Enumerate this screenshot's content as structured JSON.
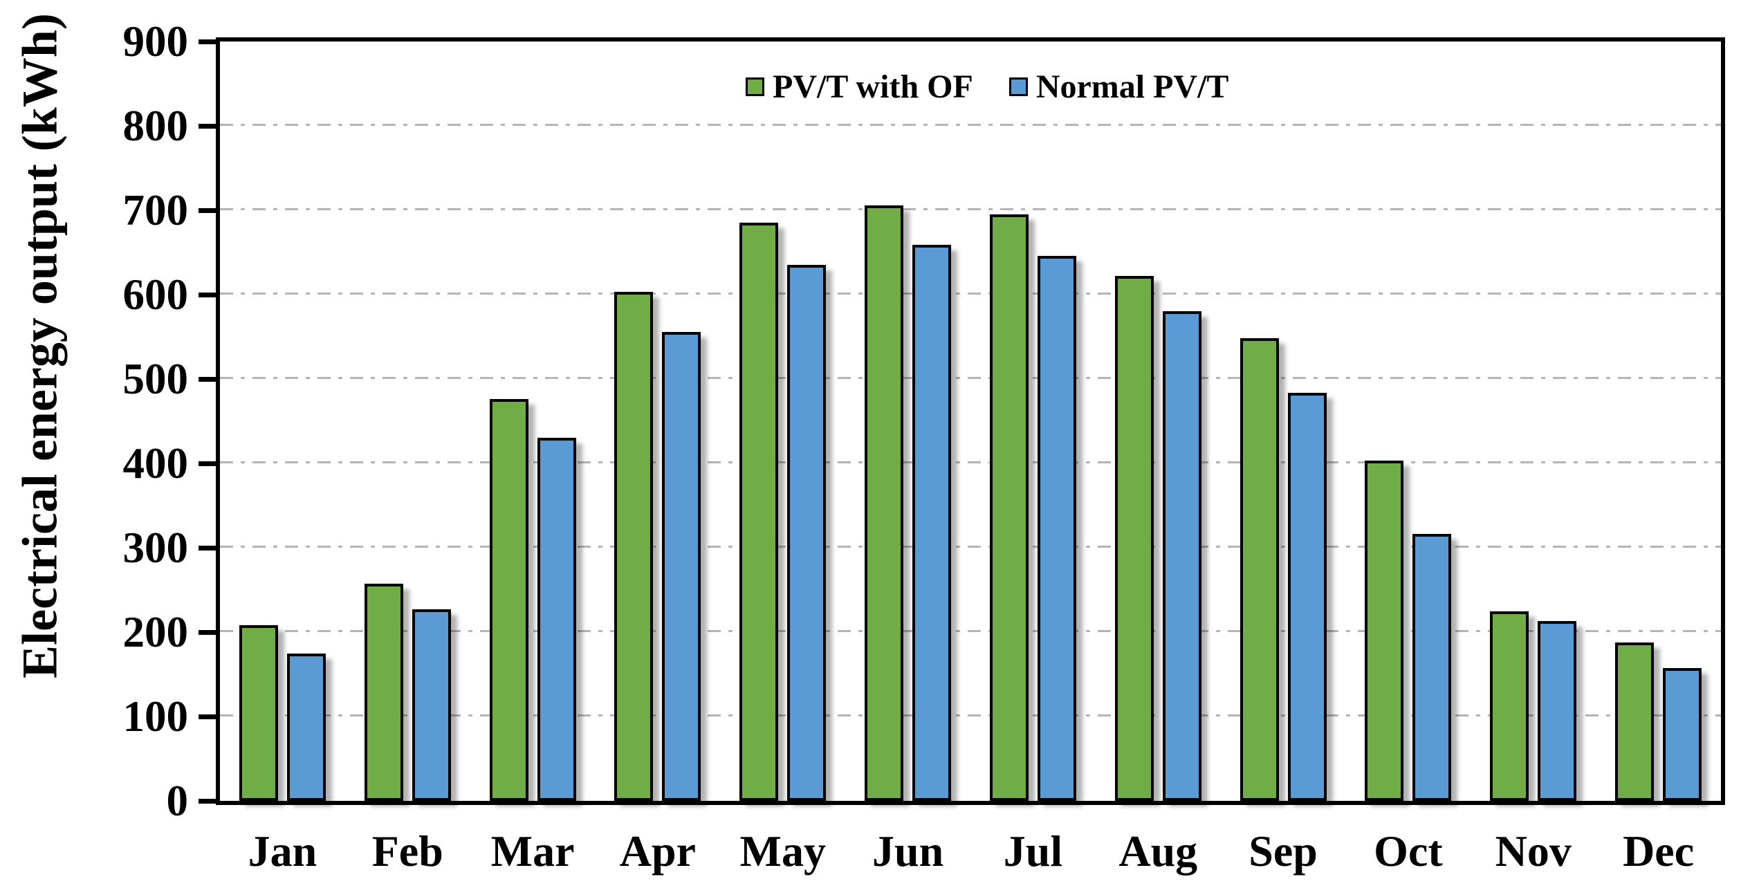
{
  "chart_data": {
    "type": "bar",
    "title": "",
    "xlabel": "",
    "ylabel": "Electrical energy output (kWh)",
    "ylim": [
      0,
      900
    ],
    "ytick_step": 100,
    "yticks": [
      0,
      100,
      200,
      300,
      400,
      500,
      600,
      700,
      800,
      900
    ],
    "categories": [
      "Jan",
      "Feb",
      "Mar",
      "Apr",
      "May",
      "Jun",
      "Jul",
      "Aug",
      "Sep",
      "Oct",
      "Nov",
      "Dec"
    ],
    "series": [
      {
        "name": "PV/T with OF",
        "color": "#70AD47",
        "values": [
          208,
          257,
          476,
          603,
          685,
          706,
          695,
          622,
          548,
          403,
          225,
          188
        ]
      },
      {
        "name": "Normal PV/T",
        "color": "#5B9BD5",
        "values": [
          175,
          227,
          430,
          556,
          635,
          659,
          646,
          580,
          484,
          316,
          213,
          157
        ]
      }
    ],
    "grid": "horizontal-dash-dot",
    "gridline_color": "#b5b5b5",
    "bar_border_color": "#000000",
    "axis_color": "#000000",
    "background": "#ffffff",
    "legend_position": "top-center"
  }
}
